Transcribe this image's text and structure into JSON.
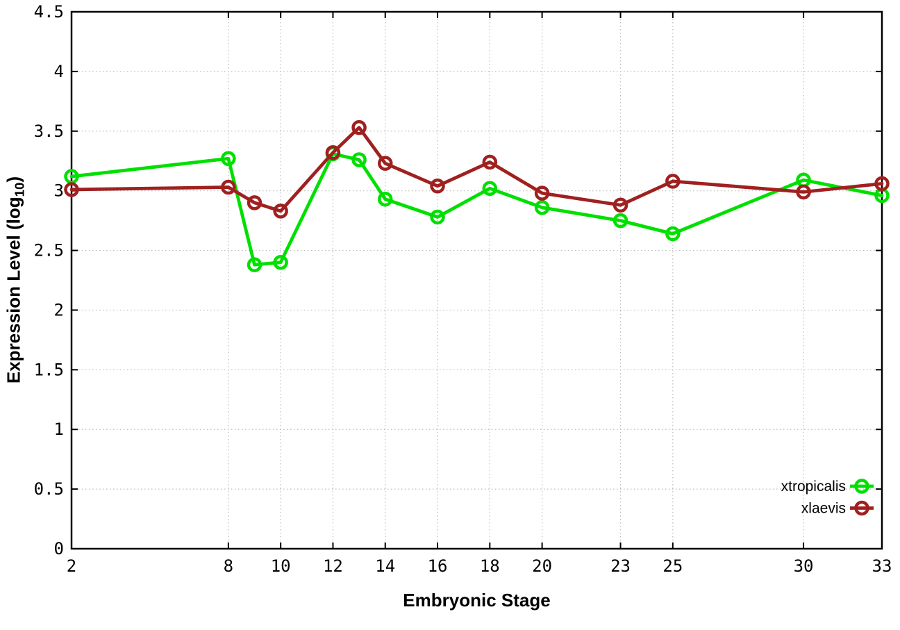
{
  "chart_data": {
    "type": "line",
    "x": [
      2,
      8,
      9,
      10,
      12,
      13,
      14,
      16,
      18,
      20,
      23,
      25,
      30,
      33
    ],
    "series": [
      {
        "name": "xtropicalis",
        "color": "#00e000",
        "values": [
          3.12,
          3.27,
          2.38,
          2.4,
          3.31,
          3.26,
          2.93,
          2.78,
          3.02,
          2.86,
          2.75,
          2.64,
          3.09,
          2.96
        ]
      },
      {
        "name": "xlaevis",
        "color": "#a02020",
        "values": [
          3.01,
          3.03,
          2.9,
          2.83,
          3.32,
          3.53,
          3.23,
          3.04,
          3.24,
          2.98,
          2.88,
          3.08,
          2.99,
          3.06
        ]
      }
    ],
    "title": "",
    "xlabel": "Embryonic Stage",
    "ylabel": "Expression Level (log10)",
    "ylabel_parts": {
      "prefix": "Expression Level (log",
      "sub": "10",
      "suffix": ")"
    },
    "xlim": [
      2,
      33
    ],
    "ylim": [
      0,
      4.5
    ],
    "xticks": [
      2,
      8,
      10,
      12,
      14,
      16,
      18,
      20,
      23,
      25,
      30,
      33
    ],
    "yticks": [
      0,
      0.5,
      1,
      1.5,
      2,
      2.5,
      3,
      3.5,
      4,
      4.5
    ],
    "grid": true,
    "grid_style": "dotted",
    "grid_color": "#bbbbbb",
    "border_color": "#000000",
    "background": "#ffffff",
    "marker": "open-circle",
    "legend_position": "bottom-right-inside"
  }
}
